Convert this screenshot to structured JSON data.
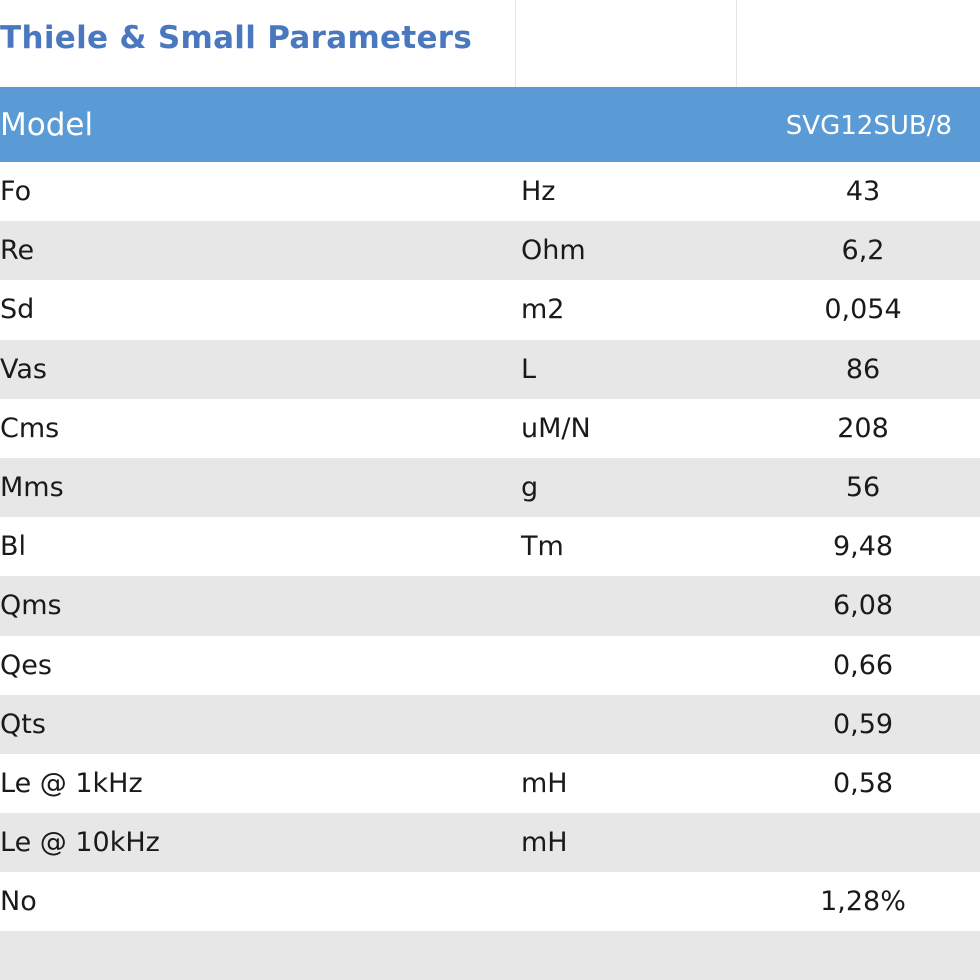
{
  "title": "Thiele & Small Parameters",
  "header": {
    "label": "Model",
    "model": "SVG12SUB/8"
  },
  "rows": [
    {
      "param": "Fo",
      "unit": "Hz",
      "value": "43"
    },
    {
      "param": "Re",
      "unit": "Ohm",
      "value": "6,2"
    },
    {
      "param": "Sd",
      "unit": "m2",
      "value": "0,054"
    },
    {
      "param": "Vas",
      "unit": "L",
      "value": "86"
    },
    {
      "param": "Cms",
      "unit": "uM/N",
      "value": "208"
    },
    {
      "param": "Mms",
      "unit": "g",
      "value": "56"
    },
    {
      "param": "Bl",
      "unit": "Tm",
      "value": "9,48"
    },
    {
      "param": "Qms",
      "unit": "",
      "value": "6,08"
    },
    {
      "param": "Qes",
      "unit": "",
      "value": "0,66"
    },
    {
      "param": "Qts",
      "unit": "",
      "value": "0,59"
    },
    {
      "param": "Le @ 1kHz",
      "unit": "mH",
      "value": "0,58"
    },
    {
      "param": "Le @ 10kHz",
      "unit": "mH",
      "value": ""
    },
    {
      "param": "No",
      "unit": "",
      "value": "1,28%"
    }
  ],
  "colors": {
    "title": "#4a78be",
    "header_bg": "#5b9bd5",
    "row_alt": "#e8e7e8"
  }
}
